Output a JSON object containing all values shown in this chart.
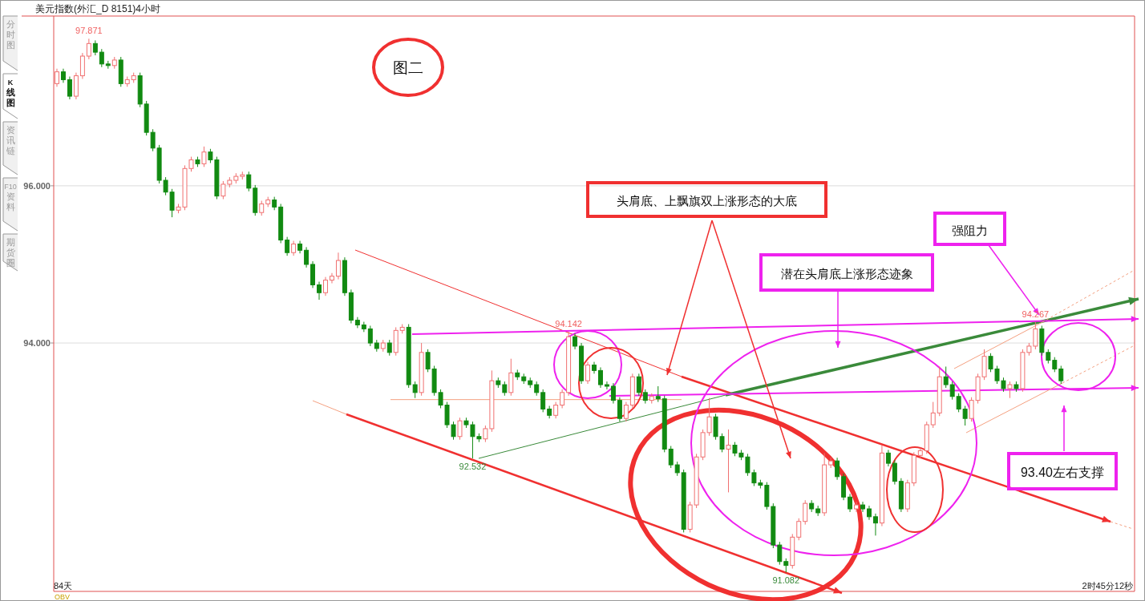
{
  "chart_data": {
    "type": "candlestick",
    "title": "美元指数(外汇_D 8151)4小时",
    "categories": [
      null,
      null,
      null,
      null,
      null,
      null,
      null,
      null,
      null,
      null,
      null,
      null,
      null,
      null,
      null,
      null,
      null,
      null,
      null,
      null,
      null,
      null,
      null,
      null,
      null,
      null,
      null,
      null,
      null,
      null,
      null,
      null,
      null,
      null,
      null,
      null,
      null,
      null,
      null,
      null,
      null,
      null,
      null,
      null,
      null,
      null,
      null,
      null,
      null,
      null,
      null,
      null,
      null,
      null,
      null,
      null,
      null,
      null,
      null,
      null,
      null,
      null,
      null,
      null,
      null,
      null,
      null,
      null,
      null,
      null,
      null,
      null,
      null,
      null,
      null,
      null,
      null,
      null,
      null,
      null,
      null,
      null,
      null,
      null,
      null,
      null,
      null,
      null,
      null,
      null,
      null,
      null,
      null,
      null,
      null,
      null,
      null,
      null,
      null,
      null,
      null,
      null,
      null,
      null,
      null,
      null,
      null,
      null,
      null,
      null,
      null,
      null,
      null,
      null,
      null,
      null,
      null,
      null,
      null,
      null,
      null,
      null,
      null,
      null,
      null,
      null,
      null,
      null,
      null,
      null,
      null,
      null,
      null,
      null,
      null,
      null,
      null,
      null,
      null,
      null,
      null,
      null,
      null,
      null,
      null,
      null,
      null,
      null,
      null,
      null,
      null,
      null,
      null,
      null,
      null,
      null,
      null,
      null,
      null,
      null,
      null,
      null,
      null,
      null,
      null,
      null,
      null,
      null,
      null
    ],
    "ohlc": [
      [
        97.3,
        97.49,
        97.26,
        97.45
      ],
      [
        97.45,
        97.49,
        97.31,
        97.35
      ],
      [
        97.35,
        97.39,
        97.1,
        97.14
      ],
      [
        97.14,
        97.44,
        97.1,
        97.4
      ],
      [
        97.4,
        97.69,
        97.36,
        97.65
      ],
      [
        97.65,
        97.871,
        97.61,
        97.81
      ],
      [
        97.81,
        97.85,
        97.66,
        97.7
      ],
      [
        97.7,
        97.74,
        97.51,
        97.55
      ],
      [
        97.55,
        97.59,
        97.49,
        97.53
      ],
      [
        97.53,
        97.64,
        97.49,
        97.6
      ],
      [
        97.6,
        97.64,
        97.26,
        97.3
      ],
      [
        97.3,
        97.39,
        97.26,
        97.35
      ],
      [
        97.35,
        97.44,
        97.31,
        97.4
      ],
      [
        97.4,
        97.44,
        97.0,
        97.04
      ],
      [
        97.04,
        97.08,
        96.64,
        96.68
      ],
      [
        96.68,
        96.72,
        96.44,
        96.48
      ],
      [
        96.48,
        96.52,
        96.03,
        96.07
      ],
      [
        96.07,
        96.11,
        95.88,
        95.92
      ],
      [
        95.92,
        95.96,
        95.6,
        95.69
      ],
      [
        95.69,
        95.77,
        95.65,
        95.73
      ],
      [
        95.73,
        96.26,
        95.69,
        96.22
      ],
      [
        96.22,
        96.37,
        96.18,
        96.33
      ],
      [
        96.33,
        96.37,
        96.24,
        96.28
      ],
      [
        96.28,
        96.5,
        96.24,
        96.43
      ],
      [
        96.43,
        96.47,
        96.29,
        96.33
      ],
      [
        96.33,
        96.37,
        95.83,
        95.87
      ],
      [
        95.87,
        96.06,
        95.83,
        96.02
      ],
      [
        96.02,
        96.11,
        95.98,
        96.07
      ],
      [
        96.07,
        96.16,
        96.03,
        96.12
      ],
      [
        96.12,
        96.18,
        96.08,
        96.14
      ],
      [
        96.14,
        96.18,
        95.93,
        95.97
      ],
      [
        95.97,
        96.01,
        95.62,
        95.66
      ],
      [
        95.66,
        95.81,
        95.62,
        95.77
      ],
      [
        95.77,
        95.86,
        95.73,
        95.82
      ],
      [
        95.82,
        95.86,
        95.69,
        95.73
      ],
      [
        95.73,
        95.77,
        95.27,
        95.31
      ],
      [
        95.31,
        95.35,
        95.11,
        95.15
      ],
      [
        95.15,
        95.3,
        95.11,
        95.26
      ],
      [
        95.26,
        95.3,
        95.14,
        95.18
      ],
      [
        95.18,
        95.22,
        94.96,
        95.0
      ],
      [
        95.0,
        95.04,
        94.7,
        94.74
      ],
      [
        94.74,
        94.78,
        94.55,
        94.64
      ],
      [
        94.64,
        94.84,
        94.6,
        94.8
      ],
      [
        94.8,
        94.89,
        94.76,
        94.85
      ],
      [
        94.85,
        95.15,
        94.81,
        95.05
      ],
      [
        95.05,
        95.09,
        94.6,
        94.64
      ],
      [
        94.64,
        94.68,
        94.25,
        94.29
      ],
      [
        94.29,
        94.33,
        94.19,
        94.23
      ],
      [
        94.23,
        94.27,
        94.14,
        94.18
      ],
      [
        94.18,
        94.22,
        93.96,
        94.0
      ],
      [
        94.0,
        94.04,
        93.89,
        93.93
      ],
      [
        93.93,
        94.04,
        93.89,
        94.0
      ],
      [
        94.0,
        94.04,
        93.84,
        93.88
      ],
      [
        93.88,
        94.2,
        93.84,
        94.16
      ],
      [
        94.16,
        94.24,
        94.12,
        94.2
      ],
      [
        94.2,
        94.24,
        93.43,
        93.47
      ],
      [
        93.47,
        93.51,
        93.3,
        93.37
      ],
      [
        93.37,
        94.0,
        93.33,
        93.88
      ],
      [
        93.88,
        93.92,
        93.63,
        93.67
      ],
      [
        93.67,
        93.71,
        93.33,
        93.37
      ],
      [
        93.37,
        93.41,
        93.17,
        93.21
      ],
      [
        93.21,
        93.25,
        92.92,
        92.96
      ],
      [
        92.96,
        93.0,
        92.77,
        92.81
      ],
      [
        92.81,
        93.05,
        92.77,
        93.01
      ],
      [
        93.01,
        93.05,
        92.92,
        92.96
      ],
      [
        92.96,
        93.0,
        92.532,
        92.81
      ],
      [
        92.81,
        92.85,
        92.74,
        92.78
      ],
      [
        92.78,
        92.95,
        92.74,
        92.91
      ],
      [
        92.91,
        93.65,
        92.87,
        93.52
      ],
      [
        93.52,
        93.56,
        93.43,
        93.47
      ],
      [
        93.47,
        93.51,
        93.33,
        93.37
      ],
      [
        93.37,
        93.8,
        93.33,
        93.62
      ],
      [
        93.62,
        93.66,
        93.53,
        93.57
      ],
      [
        93.57,
        93.61,
        93.48,
        93.52
      ],
      [
        93.52,
        93.56,
        93.43,
        93.47
      ],
      [
        93.47,
        93.51,
        93.33,
        93.37
      ],
      [
        93.37,
        93.41,
        93.12,
        93.16
      ],
      [
        93.16,
        93.2,
        93.04,
        93.08
      ],
      [
        93.08,
        93.25,
        93.04,
        93.21
      ],
      [
        93.21,
        93.41,
        93.17,
        93.37
      ],
      [
        93.37,
        94.142,
        93.33,
        94.08
      ],
      [
        94.08,
        94.12,
        93.92,
        93.96
      ],
      [
        93.96,
        94.0,
        93.48,
        93.52
      ],
      [
        93.52,
        93.76,
        93.48,
        93.72
      ],
      [
        93.72,
        93.76,
        93.61,
        93.65
      ],
      [
        93.65,
        93.69,
        93.43,
        93.47
      ],
      [
        93.47,
        93.51,
        93.41,
        93.45
      ],
      [
        93.45,
        93.49,
        93.23,
        93.27
      ],
      [
        93.27,
        93.31,
        93.0,
        93.04
      ],
      [
        93.04,
        93.25,
        93.0,
        93.21
      ],
      [
        93.21,
        93.61,
        93.17,
        93.57
      ],
      [
        93.57,
        93.61,
        93.33,
        93.37
      ],
      [
        93.37,
        93.41,
        93.23,
        93.27
      ],
      [
        93.27,
        93.36,
        93.23,
        93.32
      ],
      [
        93.32,
        93.45,
        93.25,
        93.29
      ],
      [
        93.29,
        93.33,
        92.61,
        92.65
      ],
      [
        92.65,
        92.69,
        92.41,
        92.45
      ],
      [
        92.45,
        92.49,
        92.31,
        92.35
      ],
      [
        92.35,
        92.39,
        91.59,
        91.63
      ],
      [
        91.63,
        91.98,
        91.59,
        91.94
      ],
      [
        91.94,
        92.59,
        91.9,
        92.55
      ],
      [
        92.55,
        92.9,
        92.51,
        92.86
      ],
      [
        92.86,
        93.3,
        92.82,
        93.06
      ],
      [
        93.06,
        93.1,
        92.77,
        92.81
      ],
      [
        92.81,
        92.85,
        92.61,
        92.65
      ],
      [
        92.65,
        92.9,
        92.1,
        92.7
      ],
      [
        92.7,
        92.74,
        92.56,
        92.6
      ],
      [
        92.6,
        92.64,
        92.51,
        92.55
      ],
      [
        92.55,
        92.59,
        92.31,
        92.35
      ],
      [
        92.35,
        92.39,
        92.18,
        92.22
      ],
      [
        92.22,
        92.26,
        92.15,
        92.19
      ],
      [
        92.19,
        92.23,
        91.88,
        91.92
      ],
      [
        91.92,
        91.96,
        91.39,
        91.43
      ],
      [
        91.43,
        91.47,
        91.18,
        91.22
      ],
      [
        91.22,
        91.26,
        91.082,
        91.17
      ],
      [
        91.17,
        91.57,
        91.13,
        91.53
      ],
      [
        91.53,
        91.77,
        91.49,
        91.73
      ],
      [
        91.73,
        92.0,
        91.69,
        91.96
      ],
      [
        91.96,
        92.0,
        91.85,
        91.89
      ],
      [
        91.89,
        91.93,
        91.8,
        91.84
      ],
      [
        91.84,
        92.6,
        91.8,
        92.45
      ],
      [
        92.45,
        92.54,
        92.41,
        92.5
      ],
      [
        92.5,
        92.54,
        92.26,
        92.3
      ],
      [
        92.3,
        92.34,
        92.0,
        92.04
      ],
      [
        92.04,
        92.08,
        91.85,
        91.89
      ],
      [
        91.89,
        91.98,
        91.85,
        91.94
      ],
      [
        91.94,
        91.98,
        91.85,
        91.89
      ],
      [
        91.89,
        91.93,
        91.75,
        91.79
      ],
      [
        91.79,
        91.83,
        91.55,
        91.71
      ],
      [
        91.71,
        92.7,
        91.67,
        92.6
      ],
      [
        92.6,
        92.64,
        92.43,
        92.47
      ],
      [
        92.47,
        92.51,
        92.2,
        92.24
      ],
      [
        92.24,
        92.28,
        91.85,
        91.89
      ],
      [
        91.89,
        92.26,
        91.85,
        92.22
      ],
      [
        92.22,
        92.61,
        92.18,
        92.57
      ],
      [
        92.57,
        92.67,
        92.53,
        92.63
      ],
      [
        92.63,
        93.0,
        92.59,
        92.96
      ],
      [
        92.96,
        93.25,
        92.92,
        93.11
      ],
      [
        93.11,
        93.7,
        93.07,
        93.57
      ],
      [
        93.57,
        93.7,
        93.43,
        93.47
      ],
      [
        93.47,
        93.51,
        93.28,
        93.32
      ],
      [
        93.32,
        93.36,
        93.12,
        93.16
      ],
      [
        93.16,
        93.2,
        92.95,
        93.04
      ],
      [
        93.04,
        93.31,
        93.0,
        93.27
      ],
      [
        93.27,
        93.61,
        93.23,
        93.57
      ],
      [
        93.57,
        93.92,
        93.53,
        93.83
      ],
      [
        93.83,
        93.87,
        93.63,
        93.67
      ],
      [
        93.67,
        93.71,
        93.48,
        93.52
      ],
      [
        93.52,
        93.56,
        93.38,
        93.42
      ],
      [
        93.42,
        93.51,
        93.3,
        93.47
      ],
      [
        93.47,
        93.51,
        93.38,
        93.42
      ],
      [
        93.42,
        93.92,
        93.38,
        93.88
      ],
      [
        93.88,
        94.0,
        93.84,
        93.96
      ],
      [
        93.96,
        94.267,
        93.92,
        94.18
      ],
      [
        94.18,
        94.22,
        93.84,
        93.88
      ],
      [
        93.88,
        93.92,
        93.74,
        93.78
      ],
      [
        93.78,
        93.82,
        93.63,
        93.67
      ],
      [
        93.67,
        93.71,
        93.48,
        93.52
      ],
      null,
      null,
      null,
      null,
      null,
      null,
      null,
      null,
      null,
      null,
      null
    ],
    "ylim": [
      90.84,
      98.16
    ],
    "yticks": [
      {
        "value": 94,
        "label": "94.000"
      },
      {
        "value": 96,
        "label": "96.000"
      }
    ],
    "grid": "y",
    "ref_lines": [
      {
        "axis": "y",
        "value": 93.28,
        "color": "#f4a080"
      }
    ],
    "tick_labels": "y",
    "annotations": [
      "图二",
      "头肩底、上飘旗双上涨形态的大底",
      "潜在头肩底上涨形态迹象",
      "强阻力",
      "93.40左右支撑",
      "84天",
      "2时45分12秒",
      "OBV",
      "分时图",
      "K线图",
      "资讯链",
      "F10资料",
      "期货圈",
      {
        "text": "97.871",
        "y": 97.871
      },
      {
        "text": "92.532",
        "y": 92.532
      },
      {
        "text": "94.142",
        "y": 94.142
      },
      {
        "text": "91.082",
        "y": 91.082
      },
      {
        "text": "94.267",
        "y": 94.267
      }
    ]
  }
}
